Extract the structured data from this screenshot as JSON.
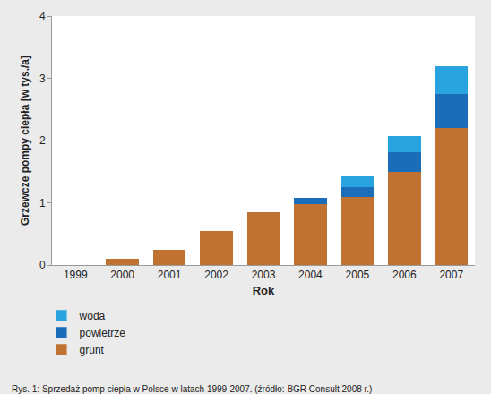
{
  "chart_data": {
    "type": "bar",
    "stacked": true,
    "title": "Rys. 1: Sprzedaż pomp ciepła w Polsce w latach 1999-2007. (źródło: BGR Consult 2008 r.)",
    "x_label": "Rok",
    "y_label": "Grzewcze pompy ciepła [w tys./a]",
    "categories": [
      "1999",
      "2000",
      "2001",
      "2002",
      "2003",
      "2004",
      "2005",
      "2006",
      "2007"
    ],
    "series": [
      {
        "name": "grunt",
        "color": "#c07232",
        "values": [
          0,
          0.1,
          0.25,
          0.55,
          0.85,
          0.98,
          1.1,
          1.5,
          2.2
        ]
      },
      {
        "name": "powietrze",
        "color": "#1a6db8",
        "values": [
          0,
          0,
          0,
          0,
          0,
          0.1,
          0.15,
          0.32,
          0.55
        ]
      },
      {
        "name": "woda",
        "color": "#2aa4de",
        "values": [
          0,
          0,
          0,
          0,
          0,
          0,
          0.17,
          0.25,
          0.45
        ]
      }
    ],
    "ylim": [
      0,
      4
    ],
    "yticks": [
      0,
      1,
      2,
      3,
      4
    ],
    "grid": false,
    "legend": "bottom left"
  }
}
